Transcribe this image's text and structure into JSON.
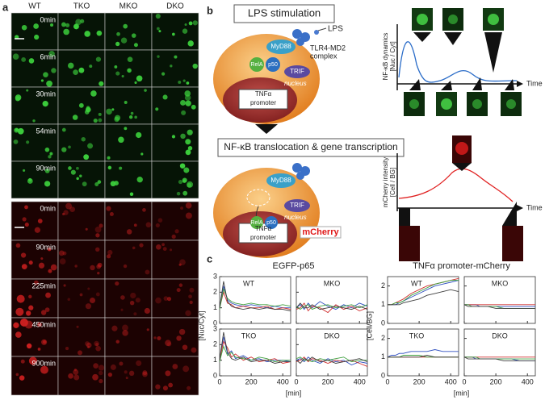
{
  "panel_labels": [
    "a",
    "b",
    "c"
  ],
  "panel_a": {
    "columns": [
      "WT",
      "TKO",
      "MKO",
      "DKO"
    ],
    "green_times": [
      "0min",
      "6min",
      "30min",
      "54min",
      "90min"
    ],
    "red_times": [
      "0min",
      "90min",
      "225min",
      "450min",
      "900min"
    ]
  },
  "panel_b": {
    "top_box": "LPS stimulation",
    "bottom_box": "NF-κB translocation & gene transcription",
    "lps": "LPS",
    "receptor": [
      "TLR4-MD2",
      "complex"
    ],
    "myd88": "MyD88",
    "rela": "RelA",
    "p50": "p50",
    "trif": "TRIF",
    "nucleus": "nucleus",
    "promoter": [
      "TNFα",
      "promoter"
    ],
    "reporter": "mCherry",
    "dynamics_ylabel": [
      "NF-κB dynamics",
      "[Nuc / Cyt]"
    ],
    "mcherry_ylabel": [
      "mCherry intensity",
      "[Cell / BG]"
    ],
    "time": "Time"
  },
  "panel_c": {
    "x": [
      0,
      25,
      50,
      75,
      100,
      150,
      200,
      250,
      300,
      350,
      400,
      450
    ],
    "xlabel": "[min]",
    "groups": [
      {
        "title": "EGFP-p65",
        "ylabel": "[Nuc/Cyt]",
        "ylim": [
          0,
          3
        ],
        "yticks": [
          0,
          1,
          2,
          3
        ],
        "xlim": [
          0,
          450
        ],
        "xticks": [
          0,
          200,
          400
        ],
        "plots": [
          {
            "label": "WT",
            "series": [
              {
                "color": "#3050c0",
                "values": [
                  1.0,
                  2.4,
                  1.5,
                  1.3,
                  1.2,
                  1.1,
                  1.2,
                  1.1,
                  1.0,
                  1.1,
                  1.0,
                  1.0
                ]
              },
              {
                "color": "#d03030",
                "values": [
                  1.0,
                  2.0,
                  1.3,
                  1.2,
                  1.0,
                  1.1,
                  1.0,
                  1.0,
                  1.1,
                  0.9,
                  1.0,
                  0.9
                ]
              },
              {
                "color": "#40a040",
                "values": [
                  0.9,
                  2.2,
                  1.6,
                  1.4,
                  1.3,
                  1.2,
                  1.3,
                  1.2,
                  1.2,
                  1.1,
                  1.2,
                  1.1
                ]
              },
              {
                "color": "#404040",
                "values": [
                  1.0,
                  2.7,
                  1.4,
                  1.1,
                  1.0,
                  0.9,
                  1.0,
                  0.9,
                  1.0,
                  0.9,
                  0.9,
                  0.8
                ]
              }
            ]
          },
          {
            "label": "MKO",
            "series": [
              {
                "color": "#3050c0",
                "values": [
                  1.0,
                  1.2,
                  0.9,
                  1.3,
                  1.0,
                  1.4,
                  1.1,
                  0.9,
                  1.2,
                  1.0,
                  1.3,
                  1.1
                ]
              },
              {
                "color": "#d03030",
                "values": [
                  0.9,
                  1.0,
                  1.3,
                  0.8,
                  1.1,
                  1.0,
                  0.7,
                  1.2,
                  0.9,
                  1.1,
                  0.8,
                  1.0
                ]
              },
              {
                "color": "#40a040",
                "values": [
                  1.1,
                  0.9,
                  1.1,
                  1.2,
                  0.9,
                  1.1,
                  1.2,
                  1.0,
                  1.1,
                  1.2,
                  1.0,
                  1.2
                ]
              },
              {
                "color": "#404040",
                "values": [
                  1.0,
                  1.3,
                  1.0,
                  1.0,
                  1.2,
                  0.9,
                  1.0,
                  1.1,
                  1.0,
                  0.9,
                  1.1,
                  0.9
                ]
              }
            ]
          },
          {
            "label": "TKO",
            "series": [
              {
                "color": "#3050c0",
                "values": [
                  1.0,
                  2.5,
                  1.4,
                  1.6,
                  1.1,
                  1.3,
                  1.0,
                  1.1,
                  0.9,
                  1.0,
                  1.0,
                  0.9
                ]
              },
              {
                "color": "#d03030",
                "values": [
                  1.0,
                  2.2,
                  1.8,
                  1.2,
                  1.4,
                  1.0,
                  1.2,
                  0.9,
                  1.0,
                  1.1,
                  0.8,
                  0.9
                ]
              },
              {
                "color": "#40a040",
                "values": [
                  0.9,
                  1.9,
                  1.3,
                  1.5,
                  1.2,
                  1.1,
                  1.0,
                  1.2,
                  1.1,
                  0.9,
                  1.0,
                  1.0
                ]
              },
              {
                "color": "#404040",
                "values": [
                  1.0,
                  2.8,
                  1.5,
                  1.1,
                  1.0,
                  1.2,
                  0.9,
                  1.0,
                  1.0,
                  0.8,
                  0.9,
                  0.9
                ]
              }
            ]
          },
          {
            "label": "DKO",
            "series": [
              {
                "color": "#3050c0",
                "values": [
                  1.0,
                  1.1,
                  0.9,
                  1.2,
                  1.0,
                  0.8,
                  1.1,
                  0.9,
                  1.0,
                  0.7,
                  0.9,
                  0.8
                ]
              },
              {
                "color": "#d03030",
                "values": [
                  0.9,
                  1.0,
                  1.2,
                  0.9,
                  1.1,
                  1.0,
                  0.8,
                  1.0,
                  0.9,
                  1.0,
                  0.8,
                  0.6
                ]
              },
              {
                "color": "#40a040",
                "values": [
                  1.1,
                  1.2,
                  1.0,
                  1.0,
                  0.9,
                  1.1,
                  1.0,
                  1.1,
                  1.2,
                  0.9,
                  1.0,
                  1.0
                ]
              },
              {
                "color": "#404040",
                "values": [
                  1.0,
                  0.8,
                  1.1,
                  1.0,
                  1.2,
                  0.9,
                  1.0,
                  0.8,
                  0.9,
                  1.0,
                  1.1,
                  0.9
                ]
              }
            ]
          }
        ]
      },
      {
        "title": "TNFα promoter-mCherry",
        "ylabel": "[Cell/BG]",
        "ylim": [
          0,
          2.5
        ],
        "yticks": [
          0,
          1,
          2
        ],
        "xlim": [
          0,
          450
        ],
        "xticks": [
          0,
          200,
          400
        ],
        "plots": [
          {
            "label": "WT",
            "series": [
              {
                "color": "#3050c0",
                "values": [
                  1.0,
                  1.0,
                  1.0,
                  1.1,
                  1.2,
                  1.4,
                  1.6,
                  1.8,
                  2.0,
                  2.1,
                  2.2,
                  2.3
                ]
              },
              {
                "color": "#d03030",
                "values": [
                  1.0,
                  1.0,
                  1.1,
                  1.2,
                  1.3,
                  1.6,
                  1.8,
                  2.0,
                  2.1,
                  2.2,
                  2.3,
                  2.4
                ]
              },
              {
                "color": "#40a040",
                "values": [
                  1.0,
                  1.0,
                  1.1,
                  1.1,
                  1.2,
                  1.5,
                  1.7,
                  1.9,
                  2.1,
                  2.2,
                  2.3,
                  2.3
                ]
              },
              {
                "color": "#404040",
                "values": [
                  1.0,
                  1.0,
                  1.0,
                  1.0,
                  1.1,
                  1.2,
                  1.3,
                  1.5,
                  1.6,
                  1.7,
                  1.8,
                  1.7
                ]
              }
            ]
          },
          {
            "label": "MKO",
            "series": [
              {
                "color": "#3050c0",
                "values": [
                  1.0,
                  1.0,
                  1.0,
                  1.0,
                  0.9,
                  0.9,
                  0.9,
                  0.9,
                  0.9,
                  0.9,
                  0.9,
                  0.9
                ]
              },
              {
                "color": "#d03030",
                "values": [
                  1.0,
                  1.0,
                  1.0,
                  1.0,
                  1.0,
                  1.0,
                  1.0,
                  1.0,
                  1.0,
                  1.0,
                  1.0,
                  1.0
                ]
              },
              {
                "color": "#40a040",
                "values": [
                  1.0,
                  1.0,
                  0.9,
                  0.9,
                  0.9,
                  0.9,
                  0.9,
                  0.8,
                  0.8,
                  0.8,
                  0.8,
                  0.8
                ]
              },
              {
                "color": "#404040",
                "values": [
                  1.0,
                  0.9,
                  0.9,
                  0.9,
                  0.9,
                  0.9,
                  0.8,
                  0.8,
                  0.8,
                  0.8,
                  0.8,
                  0.8
                ]
              }
            ]
          },
          {
            "label": "TKO",
            "series": [
              {
                "color": "#3050c0",
                "values": [
                  1.0,
                  1.1,
                  1.1,
                  1.2,
                  1.2,
                  1.3,
                  1.3,
                  1.3,
                  1.4,
                  1.3,
                  1.3,
                  1.3
                ]
              },
              {
                "color": "#d03030",
                "values": [
                  1.0,
                  1.0,
                  1.0,
                  1.0,
                  1.0,
                  1.0,
                  1.0,
                  1.0,
                  1.0,
                  1.0,
                  1.0,
                  1.0
                ]
              },
              {
                "color": "#40a040",
                "values": [
                  1.0,
                  1.0,
                  1.0,
                  1.0,
                  1.1,
                  1.1,
                  1.1,
                  1.0,
                  1.0,
                  1.0,
                  1.0,
                  1.0
                ]
              },
              {
                "color": "#404040",
                "values": [
                  1.0,
                  1.0,
                  1.0,
                  1.0,
                  1.0,
                  1.0,
                  1.0,
                  1.1,
                  1.0,
                  1.0,
                  1.0,
                  1.0
                ]
              }
            ]
          },
          {
            "label": "DKO",
            "series": [
              {
                "color": "#3050c0",
                "values": [
                  1.0,
                  1.0,
                  1.0,
                  0.9,
                  0.9,
                  0.9,
                  0.9,
                  0.9,
                  0.9,
                  0.8,
                  0.8,
                  0.8
                ]
              },
              {
                "color": "#d03030",
                "values": [
                  1.0,
                  1.0,
                  1.0,
                  1.0,
                  1.0,
                  1.0,
                  1.0,
                  1.0,
                  1.0,
                  1.0,
                  1.0,
                  1.0
                ]
              },
              {
                "color": "#40a040",
                "values": [
                  1.0,
                  1.0,
                  1.0,
                  1.0,
                  0.9,
                  0.9,
                  0.9,
                  0.9,
                  0.9,
                  0.9,
                  0.9,
                  0.9
                ]
              },
              {
                "color": "#404040",
                "values": [
                  1.0,
                  0.9,
                  0.9,
                  0.9,
                  0.9,
                  0.9,
                  0.9,
                  0.8,
                  0.8,
                  0.8,
                  0.8,
                  0.8
                ]
              }
            ]
          }
        ]
      }
    ]
  }
}
